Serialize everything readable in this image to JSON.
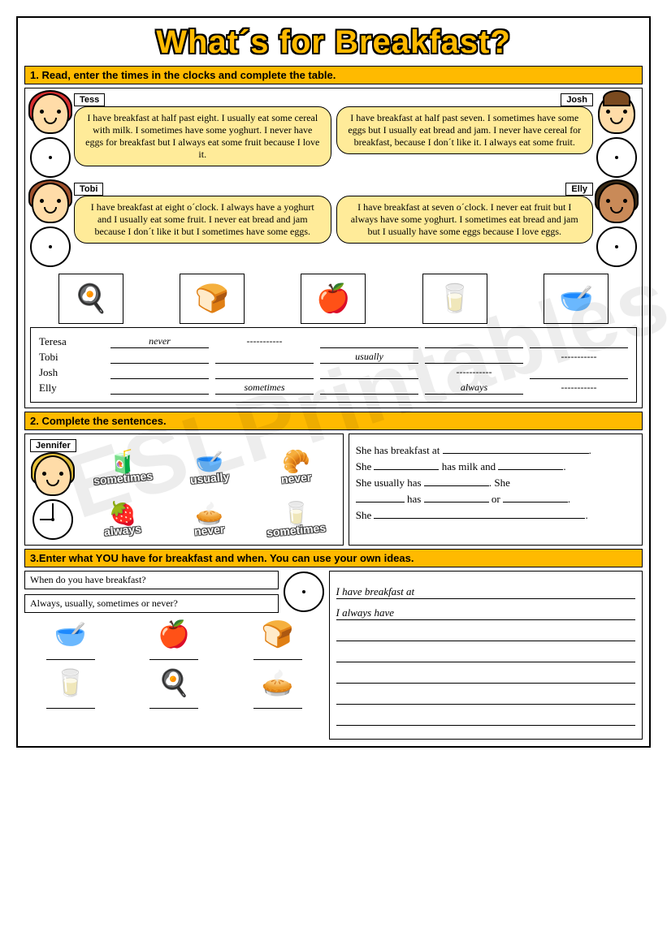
{
  "title": "What´s for Breakfast?",
  "watermark": "ESLPrintables.com",
  "task1": {
    "bar_num": "1.",
    "bar_text": " Read, enter the times in the clocks and complete the table.",
    "people": {
      "tess": {
        "name": "Tess",
        "text": "I have breakfast at half past eight. I usually eat some cereal with milk. I sometimes have some yoghurt. I never have eggs for breakfast but I always eat some fruit because I love it."
      },
      "josh": {
        "name": "Josh",
        "text": "I have breakfast at half past seven. I sometimes have some eggs but I usually eat bread and jam. I never have cereal for breakfast, because I don´t like it. I always eat some fruit."
      },
      "tobi": {
        "name": "Tobi",
        "text": "I have breakfast at eight o´clock. I always have a yoghurt and I usually eat some fruit. I never eat bread and jam because I don´t like it but I sometimes have some eggs."
      },
      "elly": {
        "name": "Elly",
        "text": "I have breakfast at seven o´clock. I never eat fruit but I always have some yoghurt. I sometimes eat bread and jam but I usually have some eggs because I love eggs."
      }
    },
    "foods": {
      "f1": "🍳",
      "f2": "🍞",
      "f3": "🍎",
      "f4": "🥛",
      "f5": "🥣"
    },
    "table": {
      "rows": [
        {
          "name": "Teresa",
          "c1": "never",
          "c2": "-----------",
          "c3": "",
          "c4": "",
          "c5": ""
        },
        {
          "name": "Tobi",
          "c1": "",
          "c2": "",
          "c3": "usually",
          "c4": "",
          "c5": "-----------"
        },
        {
          "name": "Josh",
          "c1": "",
          "c2": "",
          "c3": "",
          "c4": "-----------",
          "c5": ""
        },
        {
          "name": "Elly",
          "c1": "",
          "c2": "sometimes",
          "c3": "",
          "c4": "always",
          "c5": "-----------"
        }
      ]
    }
  },
  "task2": {
    "bar_num": "2.",
    "bar_text": " Complete the sentences.",
    "name": "Jennifer",
    "freq": {
      "w1": "sometimes",
      "w2": "usually",
      "w3": "never",
      "w4": "always",
      "w5": "never",
      "w6": "sometimes"
    },
    "foods": {
      "f1": "🧃",
      "f2": "🥣",
      "f3": "🥐",
      "f4": "🍓",
      "f5": "🥧",
      "f6": "🥛"
    },
    "sentences": {
      "s1a": "She has breakfast at ",
      "s2a": "She ",
      "s2b": " has milk and ",
      "s3a": "She usually has ",
      "s3b": ". She",
      "s4a": "",
      "s4b": " has ",
      "s4c": " or ",
      "s5a": "She "
    }
  },
  "task3": {
    "bar_num": "3.",
    "bar_text": "Enter what YOU have for breakfast and when. You can use your own ideas.",
    "q1": "When do you have breakfast?",
    "q2": "Always, usually, sometimes or never?",
    "foods": {
      "f1": "🥣",
      "f2": "🍎",
      "f3": "🍞",
      "f4": "🥛",
      "f5": "🍳",
      "f6": "🥧"
    },
    "starter1": "I have breakfast at",
    "starter2": "I always have"
  },
  "colors": {
    "accent": "#ffba00",
    "bubble": "#ffeb99"
  }
}
